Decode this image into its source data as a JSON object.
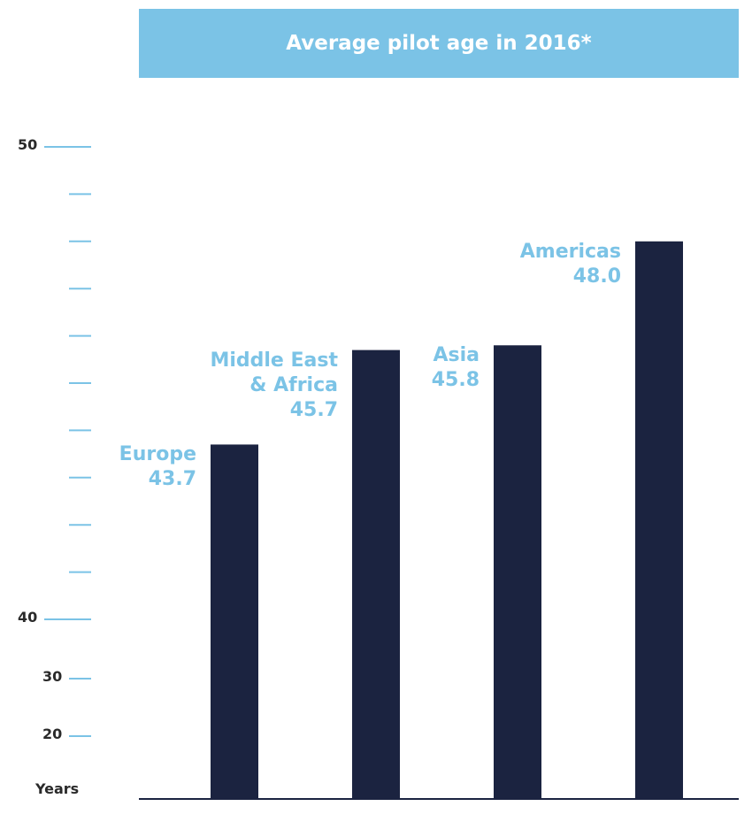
{
  "chart_data": {
    "type": "bar",
    "title": "Average pilot age in 2016*",
    "categories": [
      "Europe",
      "Middle East & Africa",
      "Asia",
      "Americas"
    ],
    "values": [
      43.7,
      45.7,
      45.8,
      48.0
    ],
    "value_labels": [
      "43.7",
      "45.7",
      "45.8",
      "48.0"
    ],
    "color": "#1b2340",
    "label_color": "#7bc3e6",
    "ylim": [
      20,
      50
    ],
    "yticks": [
      50,
      40,
      30,
      20
    ],
    "minor_yticks": [
      41,
      42,
      43,
      44,
      45,
      46,
      47,
      48,
      49
    ],
    "y_axis_label": "Years"
  }
}
